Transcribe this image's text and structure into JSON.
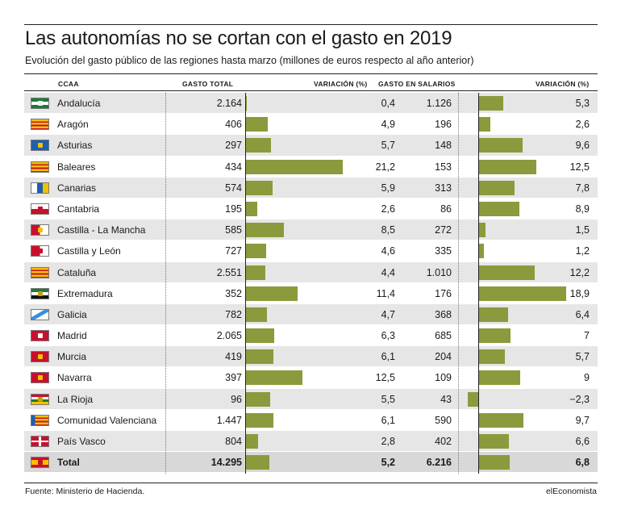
{
  "title": "Las autonomías no se cortan con el gasto en 2019",
  "subtitle": "Evolución del gasto público de las regiones hasta marzo (millones de euros respecto al año anterior)",
  "headers": {
    "ccaa": "CCAA",
    "gasto_total": "GASTO TOTAL",
    "variacion_1": "VARIACIÓN (%)",
    "gasto_salarios": "GASTO EN SALARIOS",
    "variacion_2": "VARIACIÓN (%)"
  },
  "source": "Fuente: Ministerio de Hacienda.",
  "brand": "elEconomista",
  "colors": {
    "bar": "#8b9a3c",
    "row_alt": "#e6e6e6",
    "row_total": "#d8d8d8"
  },
  "chart_data": {
    "type": "table",
    "bar_columns": [
      "variacion_gasto_total",
      "variacion_salarios"
    ],
    "rows": [
      {
        "ccaa": "Andalucía",
        "gasto_total": "2.164",
        "var_total": "0,4",
        "var_total_value": 0.4,
        "gasto_salarios": "1.126",
        "var_salarios": "5,3",
        "var_salarios_value": 5.3,
        "flag": "andalucia-flag-icon"
      },
      {
        "ccaa": "Aragón",
        "gasto_total": "406",
        "var_total": "4,9",
        "var_total_value": 4.9,
        "gasto_salarios": "196",
        "var_salarios": "2,6",
        "var_salarios_value": 2.6,
        "flag": "aragon-flag-icon"
      },
      {
        "ccaa": "Asturias",
        "gasto_total": "297",
        "var_total": "5,7",
        "var_total_value": 5.7,
        "gasto_salarios": "148",
        "var_salarios": "9,6",
        "var_salarios_value": 9.6,
        "flag": "asturias-flag-icon"
      },
      {
        "ccaa": "Baleares",
        "gasto_total": "434",
        "var_total": "21,2",
        "var_total_value": 21.2,
        "gasto_salarios": "153",
        "var_salarios": "12,5",
        "var_salarios_value": 12.5,
        "flag": "baleares-flag-icon"
      },
      {
        "ccaa": "Canarias",
        "gasto_total": "574",
        "var_total": "5,9",
        "var_total_value": 5.9,
        "gasto_salarios": "313",
        "var_salarios": "7,8",
        "var_salarios_value": 7.8,
        "flag": "canarias-flag-icon"
      },
      {
        "ccaa": "Cantabria",
        "gasto_total": "195",
        "var_total": "2,6",
        "var_total_value": 2.6,
        "gasto_salarios": "86",
        "var_salarios": "8,9",
        "var_salarios_value": 8.9,
        "flag": "cantabria-flag-icon"
      },
      {
        "ccaa": "Castilla - La Mancha",
        "gasto_total": "585",
        "var_total": "8,5",
        "var_total_value": 8.5,
        "gasto_salarios": "272",
        "var_salarios": "1,5",
        "var_salarios_value": 1.5,
        "flag": "castilla-la-mancha-flag-icon"
      },
      {
        "ccaa": "Castilla y León",
        "gasto_total": "727",
        "var_total": "4,6",
        "var_total_value": 4.6,
        "gasto_salarios": "335",
        "var_salarios": "1,2",
        "var_salarios_value": 1.2,
        "flag": "castilla-y-leon-flag-icon"
      },
      {
        "ccaa": "Cataluña",
        "gasto_total": "2.551",
        "var_total": "4,4",
        "var_total_value": 4.4,
        "gasto_salarios": "1.010",
        "var_salarios": "12,2",
        "var_salarios_value": 12.2,
        "flag": "cataluna-flag-icon"
      },
      {
        "ccaa": "Extremadura",
        "gasto_total": "352",
        "var_total": "11,4",
        "var_total_value": 11.4,
        "gasto_salarios": "176",
        "var_salarios": "18,9",
        "var_salarios_value": 18.9,
        "flag": "extremadura-flag-icon"
      },
      {
        "ccaa": "Galicia",
        "gasto_total": "782",
        "var_total": "4,7",
        "var_total_value": 4.7,
        "gasto_salarios": "368",
        "var_salarios": "6,4",
        "var_salarios_value": 6.4,
        "flag": "galicia-flag-icon"
      },
      {
        "ccaa": "Madrid",
        "gasto_total": "2.065",
        "var_total": "6,3",
        "var_total_value": 6.3,
        "gasto_salarios": "685",
        "var_salarios": "7",
        "var_salarios_value": 7,
        "flag": "madrid-flag-icon"
      },
      {
        "ccaa": "Murcia",
        "gasto_total": "419",
        "var_total": "6,1",
        "var_total_value": 6.1,
        "gasto_salarios": "204",
        "var_salarios": "5,7",
        "var_salarios_value": 5.7,
        "flag": "murcia-flag-icon"
      },
      {
        "ccaa": "Navarra",
        "gasto_total": "397",
        "var_total": "12,5",
        "var_total_value": 12.5,
        "gasto_salarios": "109",
        "var_salarios": "9",
        "var_salarios_value": 9,
        "flag": "navarra-flag-icon"
      },
      {
        "ccaa": "La Rioja",
        "gasto_total": "96",
        "var_total": "5,5",
        "var_total_value": 5.5,
        "gasto_salarios": "43",
        "var_salarios": "−2,3",
        "var_salarios_value": -2.3,
        "flag": "la-rioja-flag-icon"
      },
      {
        "ccaa": "Comunidad Valenciana",
        "gasto_total": "1.447",
        "var_total": "6,1",
        "var_total_value": 6.1,
        "gasto_salarios": "590",
        "var_salarios": "9,7",
        "var_salarios_value": 9.7,
        "flag": "comunidad-valenciana-flag-icon"
      },
      {
        "ccaa": "País Vasco",
        "gasto_total": "804",
        "var_total": "2,8",
        "var_total_value": 2.8,
        "gasto_salarios": "402",
        "var_salarios": "6,6",
        "var_salarios_value": 6.6,
        "flag": "pais-vasco-flag-icon"
      },
      {
        "ccaa": "Total",
        "gasto_total": "14.295",
        "var_total": "5,2",
        "var_total_value": 5.2,
        "gasto_salarios": "6.216",
        "var_salarios": "6,8",
        "var_salarios_value": 6.8,
        "flag": "spain-flag-icon",
        "is_total": true
      }
    ]
  }
}
